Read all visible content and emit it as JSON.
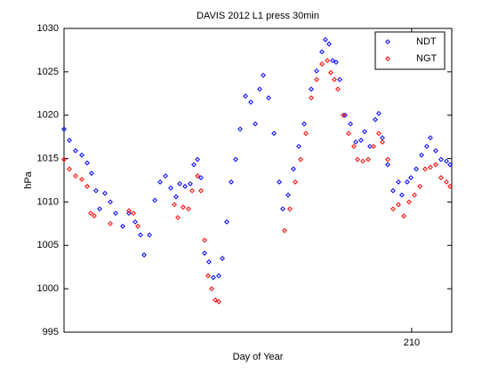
{
  "chart_data": {
    "type": "scatter",
    "title": "DAVIS 2012 L1 press 30min",
    "xlabel": "Day of Year",
    "ylabel": "hPa",
    "xlim": [
      184,
      213
    ],
    "xticks": [
      210
    ],
    "ylim": [
      995,
      1030
    ],
    "yticks": [
      995,
      1000,
      1005,
      1010,
      1015,
      1020,
      1025,
      1030
    ],
    "legend": "top-right",
    "series": [
      {
        "name": "NDT",
        "color": "#0000ff",
        "x": [
          184.0,
          184.4,
          184.86,
          185.33,
          185.73,
          186.06,
          186.39,
          186.66,
          187.06,
          187.46,
          187.86,
          188.39,
          188.86,
          189.32,
          189.72,
          189.99,
          190.39,
          190.79,
          191.19,
          191.59,
          191.98,
          192.38,
          192.65,
          193.05,
          193.44,
          193.71,
          193.98,
          194.24,
          194.51,
          194.84,
          195.17,
          195.57,
          195.84,
          196.17,
          196.5,
          196.84,
          197.17,
          197.57,
          197.97,
          198.3,
          198.63,
          198.9,
          199.3,
          199.7,
          200.1,
          200.36,
          200.76,
          201.16,
          201.56,
          201.96,
          202.49,
          202.89,
          203.29,
          203.55,
          203.82,
          204.09,
          204.35,
          204.62,
          205.02,
          205.42,
          205.82,
          206.21,
          206.48,
          206.88,
          207.28,
          207.54,
          207.81,
          208.21,
          208.61,
          209.01,
          209.27,
          209.67,
          209.94,
          210.34,
          210.74,
          211.13,
          211.4,
          211.8,
          212.2,
          212.6,
          212.87
        ],
        "values": [
          1018.4,
          1017.1,
          1015.9,
          1015.4,
          1014.5,
          1013.3,
          1011.3,
          1009.2,
          1011.0,
          1010.0,
          1008.7,
          1007.2,
          1008.7,
          1007.7,
          1006.2,
          1003.9,
          1006.2,
          1010.2,
          1012.3,
          1013.0,
          1011.6,
          1010.6,
          1012.1,
          1011.8,
          1012.1,
          1014.3,
          1014.9,
          1012.8,
          1004.1,
          1003.1,
          1001.3,
          1001.5,
          1003.5,
          1007.7,
          1012.3,
          1014.9,
          1018.4,
          1022.2,
          1021.5,
          1019.0,
          1023.0,
          1024.6,
          1022.0,
          1017.9,
          1012.3,
          1009.2,
          1010.8,
          1013.8,
          1016.4,
          1019.0,
          1023.0,
          1025.1,
          1027.3,
          1028.7,
          1028.2,
          1026.3,
          1026.1,
          1024.1,
          1020.0,
          1019.0,
          1016.9,
          1017.1,
          1018.1,
          1016.4,
          1019.5,
          1020.2,
          1017.4,
          1014.3,
          1011.3,
          1012.3,
          1010.8,
          1012.3,
          1012.8,
          1013.8,
          1015.4,
          1016.4,
          1017.4,
          1015.9,
          1014.9,
          1014.7,
          1014.3
        ]
      },
      {
        "name": "NGT",
        "color": "#ff0000",
        "x": [
          184.0,
          184.4,
          184.86,
          185.33,
          185.73,
          186.0,
          186.26,
          187.46,
          188.86,
          189.19,
          189.52,
          192.25,
          192.51,
          192.91,
          193.31,
          193.58,
          193.98,
          194.24,
          194.51,
          194.77,
          195.04,
          195.31,
          195.57,
          200.49,
          200.89,
          201.29,
          201.69,
          202.09,
          202.49,
          202.89,
          203.29,
          203.69,
          203.95,
          204.22,
          204.48,
          204.88,
          205.28,
          205.68,
          205.95,
          206.35,
          206.75,
          207.15,
          207.54,
          207.81,
          208.21,
          208.61,
          209.01,
          209.41,
          209.81,
          210.21,
          210.61,
          211.01,
          211.4,
          211.8,
          212.2,
          212.6,
          212.87
        ],
        "values": [
          1014.9,
          1013.8,
          1013.0,
          1012.6,
          1011.8,
          1008.7,
          1008.4,
          1007.5,
          1009.0,
          1008.7,
          1007.2,
          1009.7,
          1008.2,
          1009.4,
          1009.2,
          1011.3,
          1013.0,
          1011.3,
          1005.6,
          1001.5,
          1000.0,
          998.7,
          998.5,
          1006.7,
          1009.2,
          1012.3,
          1014.9,
          1017.9,
          1022.0,
          1024.1,
          1025.9,
          1026.3,
          1024.9,
          1024.1,
          1023.0,
          1020.0,
          1017.9,
          1016.4,
          1014.9,
          1014.7,
          1014.9,
          1016.4,
          1017.9,
          1016.9,
          1014.9,
          1009.2,
          1009.7,
          1008.4,
          1010.0,
          1010.8,
          1011.8,
          1013.8,
          1014.0,
          1014.3,
          1012.8,
          1012.3,
          1011.8
        ]
      }
    ]
  }
}
